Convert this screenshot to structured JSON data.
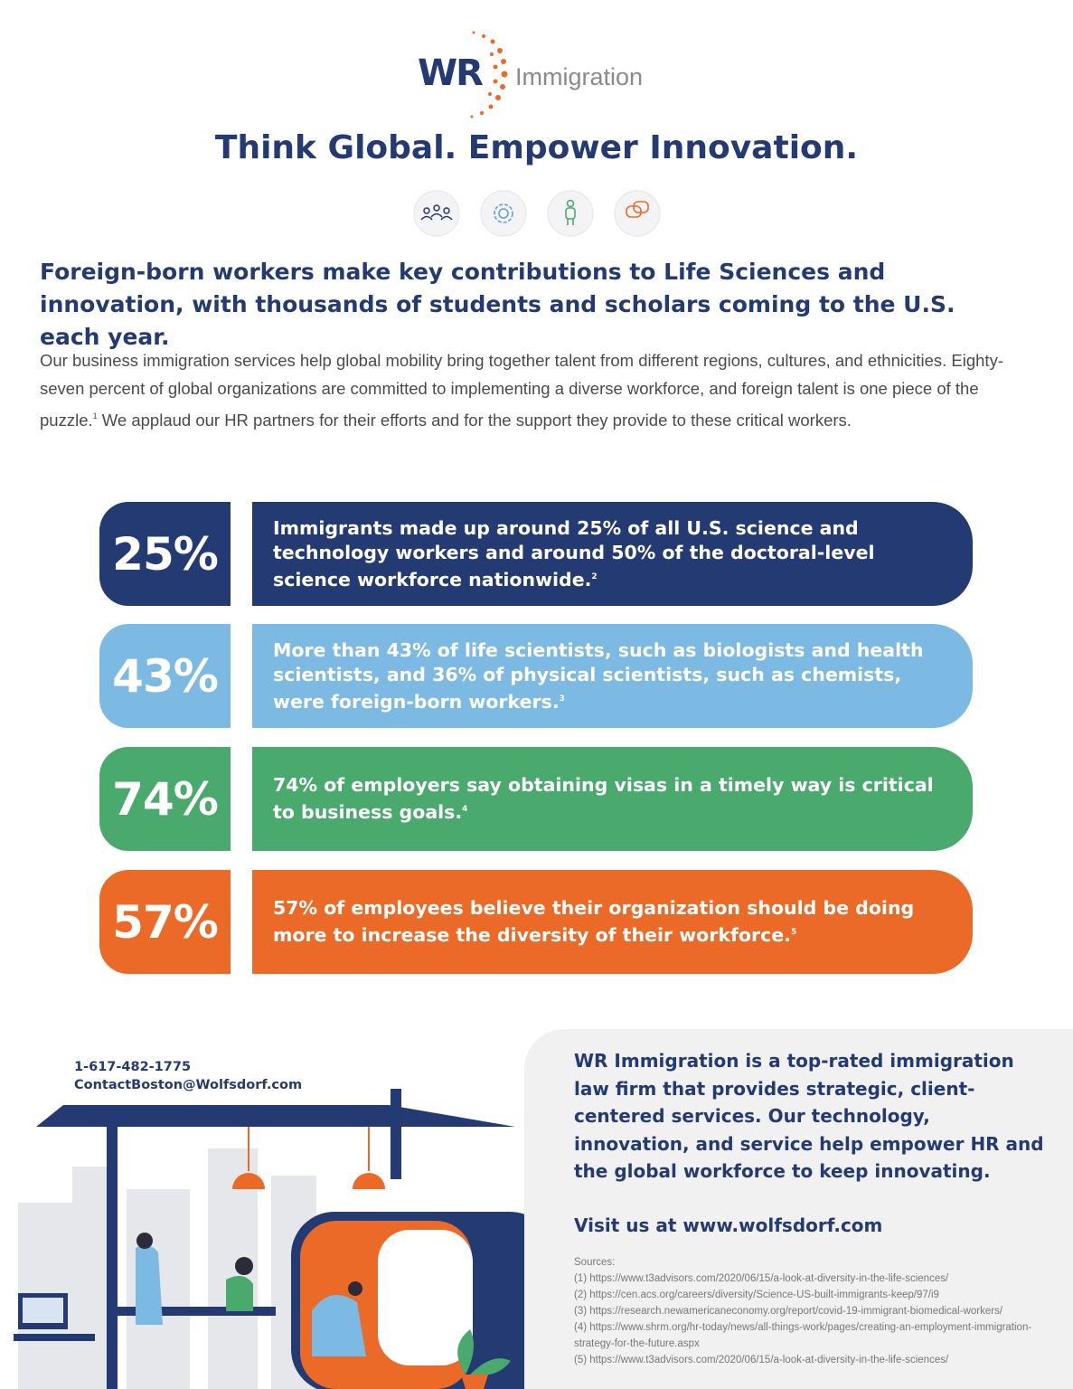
{
  "logo": {
    "mark": "WR",
    "name": "Immigration"
  },
  "headline": "Think Global. Empower Innovation.",
  "subheadline": "Foreign-born workers make key contributions to Life Sciences and innovation, with thousands of students and scholars coming to the U.S. each year.",
  "intro": {
    "before": "Our business immigration services help global mobility bring together talent from different regions, cultures, and ethnicities. Eighty-seven percent of global organizations are committed to implementing a diverse workforce, and foreign talent is one piece of the puzzle.",
    "note": "1",
    "after": " We applaud our HR partners for their efforts and for the support they provide to these critical workers."
  },
  "stats": [
    {
      "value": "25%",
      "text": "Immigrants made up around 25% of all U.S. science and technology workers and around 50% of the doctoral-level science workforce nationwide.",
      "note": "2",
      "color": "#233a72"
    },
    {
      "value": "43%",
      "text": "More than 43% of life scientists, such as biologists and health scientists, and 36% of physical scientists, such as chemists, were foreign-born workers.",
      "note": "3",
      "color": "#7cb9e3"
    },
    {
      "value": "74%",
      "text": "74% of employers say obtaining visas in a timely way is critical to business goals.",
      "note": "4",
      "color": "#4aa96d"
    },
    {
      "value": "57%",
      "text": "57% of employees believe their organization should be doing more to increase the diversity of their workforce.",
      "note": "5",
      "color": "#eb6a28"
    }
  ],
  "contact": {
    "phone": "1-617-482-1775",
    "email": "ContactBoston@Wolfsdorf.com"
  },
  "about": "WR Immigration is a top-rated immigration law firm that provides strategic, client-centered services. Our technology, innovation, and service help empower HR and the global workforce to keep innovating.",
  "visit": "Visit us at www.wolfsdorf.com",
  "sources": {
    "title": "Sources:",
    "items": [
      "(1) https://www.t3advisors.com/2020/06/15/a-look-at-diversity-in-the-life-sciences/",
      "(2) https://cen.acs.org/careers/diversity/Science-US-built-immigrants-keep/97/i9",
      "(3) https://research.newamericaneconomy.org/report/covid-19-immigrant-biomedical-workers/",
      "(4) https://www.shrm.org/hr-today/news/all-things-work/pages/creating-an-employment-immigration-strategy-for-the-future.aspx",
      "(5) https://www.t3advisors.com/2020/06/15/a-look-at-diversity-in-the-life-sciences/"
    ]
  }
}
